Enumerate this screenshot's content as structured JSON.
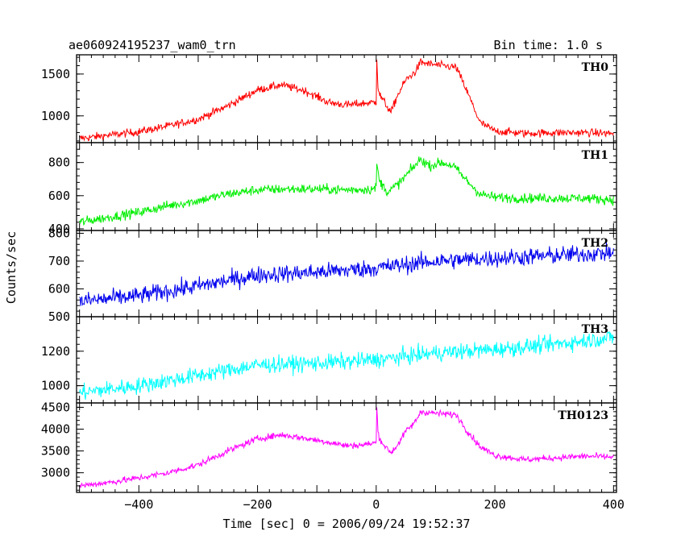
{
  "chart_data": {
    "type": "line",
    "title": "ae060924195237_wam0_trn",
    "bin_time_label": "Bin time: 1.0 s",
    "xlabel": "Time [sec] 0 = 2006/09/24 19:52:37",
    "ylabel": "Counts/sec",
    "xlim": [
      -505,
      405
    ],
    "xticks": [
      -400,
      -200,
      0,
      200,
      400
    ],
    "xtick_labels": [
      "−400",
      "−200",
      "0",
      "200",
      "400"
    ],
    "series": [
      {
        "name": "TH0",
        "color": "#ff0000",
        "ylim": [
          680,
          1730
        ],
        "yticks": [
          1000,
          1500
        ],
        "ytick_labels": [
          "1000",
          "1500"
        ],
        "noise": 45,
        "x": [
          -500,
          -450,
          -400,
          -350,
          -300,
          -250,
          -200,
          -160,
          -120,
          -80,
          -50,
          -20,
          -5,
          0,
          1,
          3,
          6,
          15,
          25,
          35,
          50,
          65,
          75,
          90,
          110,
          135,
          155,
          175,
          200,
          250,
          300,
          350,
          400
        ],
        "y": [
          730,
          770,
          810,
          880,
          960,
          1120,
          1310,
          1370,
          1300,
          1160,
          1130,
          1150,
          1160,
          1170,
          1700,
          1350,
          1250,
          1150,
          1040,
          1230,
          1430,
          1520,
          1640,
          1620,
          1600,
          1580,
          1260,
          920,
          820,
          790,
          800,
          800,
          790
        ]
      },
      {
        "name": "TH1",
        "color": "#00ee00",
        "ylim": [
          390,
          920
        ],
        "yticks": [
          400,
          600,
          800
        ],
        "ytick_labels": [
          "400",
          "600",
          "800"
        ],
        "noise": 28,
        "x": [
          -500,
          -450,
          -400,
          -350,
          -300,
          -250,
          -200,
          -150,
          -100,
          -50,
          -5,
          0,
          1,
          5,
          20,
          40,
          60,
          75,
          90,
          110,
          130,
          150,
          175,
          200,
          250,
          300,
          350,
          400
        ],
        "y": [
          440,
          470,
          500,
          540,
          570,
          610,
          635,
          640,
          640,
          635,
          640,
          650,
          800,
          690,
          620,
          680,
          760,
          820,
          780,
          800,
          780,
          700,
          610,
          590,
          585,
          585,
          585,
          575
        ]
      },
      {
        "name": "TH2",
        "color": "#0000ee",
        "ylim": [
          500,
          810
        ],
        "yticks": [
          500,
          600,
          700,
          800
        ],
        "ytick_labels": [
          "500",
          "600",
          "700",
          "800"
        ],
        "noise": 30,
        "x": [
          -500,
          -400,
          -300,
          -200,
          -100,
          0,
          100,
          200,
          300,
          400
        ],
        "y": [
          555,
          575,
          610,
          650,
          660,
          675,
          700,
          710,
          720,
          730
        ]
      },
      {
        "name": "TH3",
        "color": "#00ffff",
        "ylim": [
          900,
          1400
        ],
        "yticks": [
          1000,
          1200
        ],
        "ytick_labels": [
          "1000",
          "1200"
        ],
        "noise": 45,
        "x": [
          -500,
          -400,
          -300,
          -200,
          -100,
          0,
          100,
          200,
          300,
          400
        ],
        "y": [
          960,
          1000,
          1060,
          1120,
          1130,
          1150,
          1190,
          1210,
          1240,
          1280
        ]
      },
      {
        "name": "TH0123",
        "color": "#ff00ff",
        "ylim": [
          2550,
          4600
        ],
        "yticks": [
          3000,
          3500,
          4000,
          4500
        ],
        "ytick_labels": [
          "3000",
          "3500",
          "4000",
          "4500"
        ],
        "noise": 70,
        "x": [
          -500,
          -450,
          -400,
          -350,
          -300,
          -250,
          -200,
          -160,
          -120,
          -80,
          -50,
          -20,
          -5,
          0,
          1,
          3,
          6,
          15,
          25,
          35,
          50,
          65,
          75,
          90,
          110,
          135,
          155,
          175,
          200,
          250,
          300,
          350,
          400
        ],
        "y": [
          2700,
          2780,
          2880,
          3000,
          3180,
          3500,
          3780,
          3870,
          3790,
          3700,
          3620,
          3640,
          3680,
          3700,
          4480,
          3950,
          3780,
          3600,
          3460,
          3620,
          3950,
          4150,
          4400,
          4380,
          4350,
          4330,
          3930,
          3600,
          3400,
          3300,
          3340,
          3380,
          3360
        ]
      }
    ]
  }
}
